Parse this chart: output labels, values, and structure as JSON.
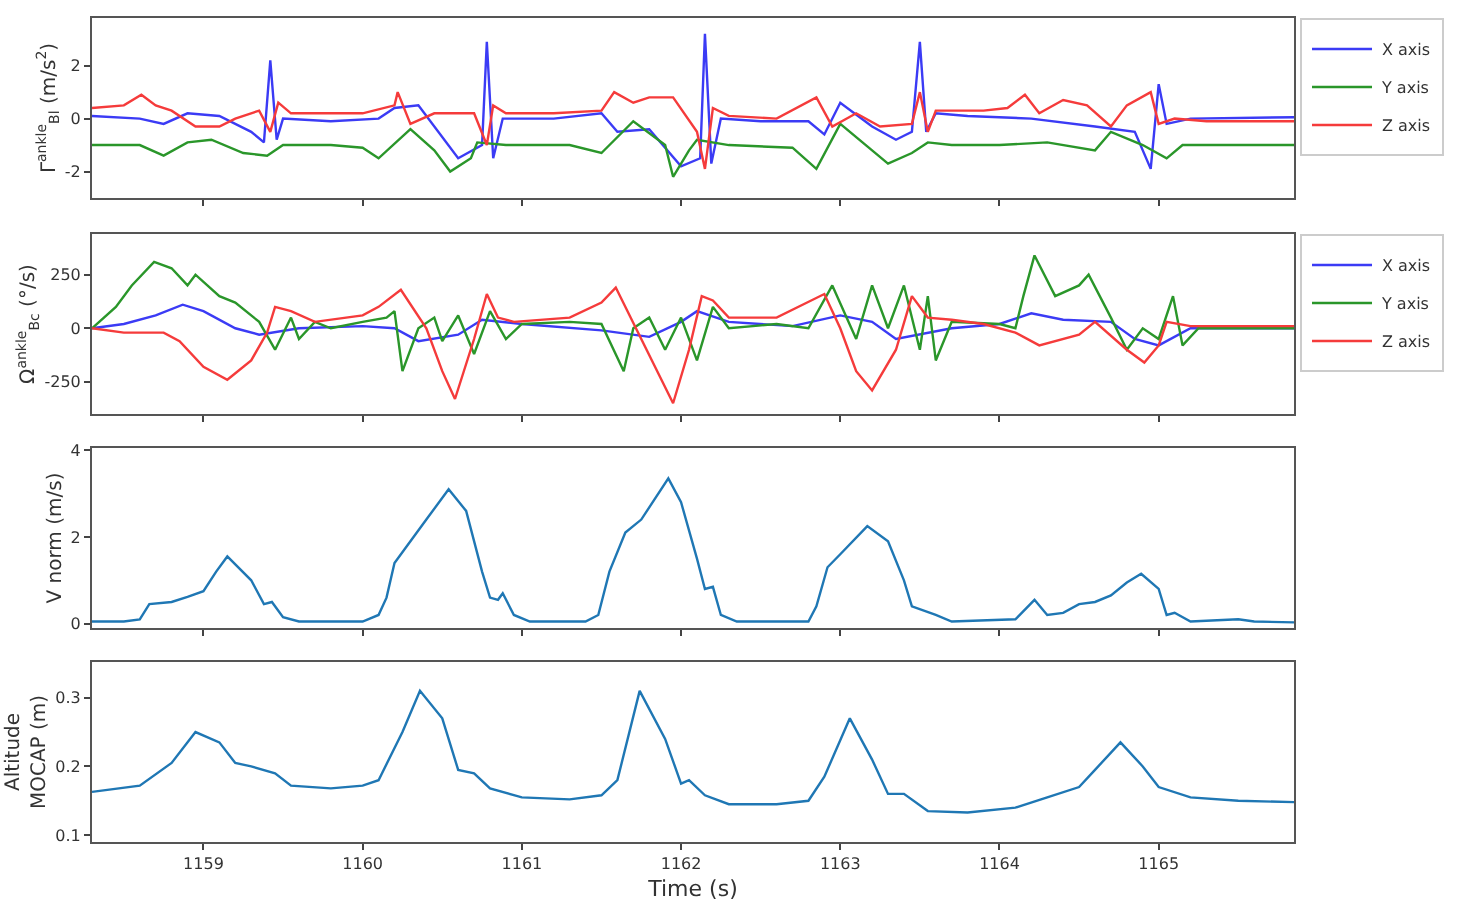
{
  "chart_data": [
    {
      "type": "line",
      "ylabel": "Γ$^{ankle}$$_{Bl}$ (m/s$^{2}$)",
      "xlim": [
        1158.3,
        1165.85
      ],
      "xticks": [
        {
          "value": 1159,
          "label": null
        },
        {
          "value": 1160,
          "label": null
        },
        {
          "value": 1161,
          "label": null
        },
        {
          "value": 1162,
          "label": null
        },
        {
          "value": 1163,
          "label": null
        },
        {
          "value": 1164,
          "label": null
        },
        {
          "value": 1165,
          "label": null
        }
      ],
      "ylim": [
        -3,
        3.8
      ],
      "yticks": [
        -2,
        0,
        2
      ],
      "tick_labels": "y",
      "legend": "top right",
      "series": [
        {
          "name": "X axis",
          "color": "#3b3bf5",
          "x": [
            1158.3,
            1158.6,
            1158.75,
            1158.9,
            1159.1,
            1159.3,
            1159.38,
            1159.42,
            1159.46,
            1159.5,
            1159.8,
            1160.1,
            1160.2,
            1160.35,
            1160.6,
            1160.75,
            1160.78,
            1160.82,
            1160.88,
            1161.2,
            1161.5,
            1161.6,
            1161.8,
            1162.0,
            1162.12,
            1162.15,
            1162.19,
            1162.25,
            1162.5,
            1162.8,
            1162.9,
            1163.0,
            1163.2,
            1163.35,
            1163.45,
            1163.5,
            1163.54,
            1163.6,
            1163.8,
            1164.2,
            1164.6,
            1164.85,
            1164.95,
            1165.0,
            1165.05,
            1165.2,
            1165.85
          ],
          "values": [
            0.1,
            0.0,
            -0.2,
            0.2,
            0.1,
            -0.5,
            -0.9,
            2.2,
            -0.8,
            0.0,
            -0.1,
            0.0,
            0.4,
            0.5,
            -1.5,
            -1.0,
            2.9,
            -1.5,
            0.0,
            0.0,
            0.2,
            -0.5,
            -0.4,
            -1.8,
            -1.5,
            3.2,
            -1.7,
            0.0,
            -0.1,
            -0.1,
            -0.6,
            0.6,
            -0.3,
            -0.8,
            -0.5,
            2.9,
            -0.5,
            0.2,
            0.1,
            0.0,
            -0.3,
            -0.5,
            -1.9,
            1.3,
            -0.2,
            0.0,
            0.05
          ]
        },
        {
          "name": "Y axis",
          "color": "#2a962a",
          "x": [
            1158.3,
            1158.6,
            1158.75,
            1158.9,
            1159.05,
            1159.25,
            1159.4,
            1159.5,
            1159.8,
            1160.0,
            1160.1,
            1160.3,
            1160.45,
            1160.55,
            1160.68,
            1160.72,
            1160.9,
            1161.3,
            1161.5,
            1161.7,
            1161.9,
            1161.95,
            1162.05,
            1162.1,
            1162.3,
            1162.7,
            1162.85,
            1163.0,
            1163.2,
            1163.3,
            1163.45,
            1163.55,
            1163.7,
            1164.0,
            1164.3,
            1164.6,
            1164.7,
            1164.9,
            1165.05,
            1165.15,
            1165.85
          ],
          "values": [
            -1.0,
            -1.0,
            -1.4,
            -0.9,
            -0.8,
            -1.3,
            -1.4,
            -1.0,
            -1.0,
            -1.1,
            -1.5,
            -0.4,
            -1.2,
            -2.0,
            -1.5,
            -0.9,
            -1.0,
            -1.0,
            -1.3,
            -0.1,
            -1.0,
            -2.2,
            -1.2,
            -0.8,
            -1.0,
            -1.1,
            -1.9,
            -0.2,
            -1.2,
            -1.7,
            -1.3,
            -0.9,
            -1.0,
            -1.0,
            -0.9,
            -1.2,
            -0.5,
            -1.0,
            -1.5,
            -1.0,
            -1.0
          ]
        },
        {
          "name": "Z axis",
          "color": "#f53b3b",
          "x": [
            1158.3,
            1158.5,
            1158.61,
            1158.7,
            1158.8,
            1158.95,
            1159.1,
            1159.2,
            1159.35,
            1159.42,
            1159.47,
            1159.55,
            1160.0,
            1160.2,
            1160.22,
            1160.3,
            1160.45,
            1160.7,
            1160.78,
            1160.82,
            1160.9,
            1161.2,
            1161.5,
            1161.58,
            1161.7,
            1161.8,
            1161.95,
            1162.1,
            1162.15,
            1162.2,
            1162.3,
            1162.6,
            1162.85,
            1162.95,
            1163.1,
            1163.25,
            1163.45,
            1163.5,
            1163.55,
            1163.6,
            1163.9,
            1164.05,
            1164.16,
            1164.25,
            1164.4,
            1164.55,
            1164.7,
            1164.8,
            1164.95,
            1165.0,
            1165.1,
            1165.3,
            1165.85
          ],
          "values": [
            0.4,
            0.5,
            0.9,
            0.5,
            0.3,
            -0.3,
            -0.3,
            0.0,
            0.3,
            -0.5,
            0.6,
            0.2,
            0.2,
            0.5,
            1.0,
            -0.2,
            0.2,
            0.2,
            -1.0,
            0.5,
            0.2,
            0.2,
            0.3,
            1.0,
            0.6,
            0.8,
            0.8,
            -0.5,
            -1.9,
            0.4,
            0.1,
            0.0,
            0.8,
            -0.3,
            0.2,
            -0.3,
            -0.2,
            1.0,
            -0.5,
            0.3,
            0.3,
            0.4,
            0.9,
            0.2,
            0.7,
            0.5,
            -0.3,
            0.5,
            1.0,
            -0.2,
            0.0,
            -0.1,
            -0.1
          ]
        }
      ]
    },
    {
      "type": "line",
      "ylabel": "Ω$^{ankle}$$_{Bc}$ (°/s)",
      "xlim": [
        1158.3,
        1165.85
      ],
      "xticks": [
        {
          "value": 1159,
          "label": null
        },
        {
          "value": 1160,
          "label": null
        },
        {
          "value": 1161,
          "label": null
        },
        {
          "value": 1162,
          "label": null
        },
        {
          "value": 1163,
          "label": null
        },
        {
          "value": 1164,
          "label": null
        },
        {
          "value": 1165,
          "label": null
        }
      ],
      "ylim": [
        -400,
        440
      ],
      "yticks": [
        -250,
        0,
        250
      ],
      "tick_labels": "y",
      "legend": "top right",
      "series": [
        {
          "name": "X axis",
          "color": "#3b3bf5",
          "x": [
            1158.3,
            1158.5,
            1158.7,
            1158.87,
            1159.0,
            1159.2,
            1159.35,
            1159.6,
            1160.0,
            1160.2,
            1160.35,
            1160.6,
            1160.75,
            1161.0,
            1161.5,
            1161.8,
            1162.0,
            1162.1,
            1162.3,
            1162.7,
            1163.0,
            1163.2,
            1163.35,
            1163.7,
            1164.0,
            1164.2,
            1164.4,
            1164.7,
            1164.85,
            1165.0,
            1165.2,
            1165.85
          ],
          "values": [
            0,
            20,
            60,
            110,
            80,
            0,
            -30,
            0,
            10,
            0,
            -60,
            -30,
            40,
            20,
            -10,
            -40,
            30,
            80,
            30,
            10,
            60,
            30,
            -50,
            0,
            20,
            70,
            40,
            30,
            -50,
            -80,
            0,
            0
          ]
        },
        {
          "name": "Y axis",
          "color": "#2a962a",
          "x": [
            1158.3,
            1158.45,
            1158.55,
            1158.69,
            1158.8,
            1158.9,
            1158.95,
            1159.1,
            1159.2,
            1159.35,
            1159.45,
            1159.55,
            1159.6,
            1159.7,
            1159.8,
            1160.0,
            1160.15,
            1160.2,
            1160.25,
            1160.35,
            1160.45,
            1160.5,
            1160.6,
            1160.7,
            1160.8,
            1160.9,
            1161.0,
            1161.3,
            1161.5,
            1161.64,
            1161.7,
            1161.8,
            1161.9,
            1162.0,
            1162.1,
            1162.2,
            1162.3,
            1162.6,
            1162.8,
            1162.95,
            1163.1,
            1163.2,
            1163.3,
            1163.4,
            1163.5,
            1163.55,
            1163.6,
            1163.7,
            1164.0,
            1164.1,
            1164.15,
            1164.22,
            1164.35,
            1164.5,
            1164.56,
            1164.7,
            1164.8,
            1164.9,
            1165.0,
            1165.09,
            1165.15,
            1165.25,
            1165.85
          ],
          "values": [
            0,
            100,
            200,
            310,
            280,
            200,
            250,
            150,
            120,
            30,
            -100,
            50,
            -50,
            30,
            0,
            30,
            50,
            80,
            -200,
            0,
            50,
            -60,
            60,
            -120,
            80,
            -50,
            20,
            30,
            20,
            -200,
            0,
            50,
            -100,
            50,
            -150,
            100,
            0,
            20,
            0,
            200,
            -50,
            200,
            0,
            200,
            -100,
            150,
            -150,
            30,
            20,
            0,
            150,
            340,
            150,
            200,
            250,
            50,
            -100,
            0,
            -50,
            150,
            -80,
            0,
            0
          ]
        },
        {
          "name": "Z axis",
          "color": "#f53b3b",
          "x": [
            1158.3,
            1158.5,
            1158.75,
            1158.85,
            1159.0,
            1159.15,
            1159.3,
            1159.4,
            1159.45,
            1159.55,
            1159.7,
            1160.0,
            1160.1,
            1160.24,
            1160.4,
            1160.5,
            1160.58,
            1160.7,
            1160.78,
            1160.85,
            1160.95,
            1161.3,
            1161.5,
            1161.59,
            1161.75,
            1161.95,
            1162.05,
            1162.13,
            1162.2,
            1162.3,
            1162.6,
            1162.9,
            1163.0,
            1163.1,
            1163.2,
            1163.35,
            1163.45,
            1163.55,
            1163.7,
            1163.9,
            1164.1,
            1164.25,
            1164.5,
            1164.6,
            1164.8,
            1164.91,
            1165.0,
            1165.05,
            1165.2,
            1165.85
          ],
          "values": [
            0,
            -20,
            -20,
            -60,
            -180,
            -240,
            -150,
            -20,
            100,
            80,
            30,
            60,
            100,
            180,
            0,
            -200,
            -330,
            -50,
            160,
            50,
            30,
            50,
            120,
            190,
            -50,
            -350,
            -100,
            150,
            130,
            50,
            50,
            160,
            0,
            -200,
            -290,
            -100,
            150,
            50,
            40,
            20,
            -20,
            -80,
            -30,
            30,
            -100,
            -160,
            -80,
            30,
            10,
            10
          ]
        }
      ]
    },
    {
      "type": "line",
      "ylabel": "V norm (m/s)",
      "xlim": [
        1158.3,
        1165.85
      ],
      "xticks": [
        {
          "value": 1159,
          "label": null
        },
        {
          "value": 1160,
          "label": null
        },
        {
          "value": 1161,
          "label": null
        },
        {
          "value": 1162,
          "label": null
        },
        {
          "value": 1163,
          "label": null
        },
        {
          "value": 1164,
          "label": null
        },
        {
          "value": 1165,
          "label": null
        }
      ],
      "ylim": [
        -0.1,
        4.05
      ],
      "yticks": [
        0,
        2,
        4
      ],
      "tick_labels": "y",
      "series": [
        {
          "color": "#1f77b4",
          "x": [
            1158.3,
            1158.5,
            1158.6,
            1158.66,
            1158.8,
            1158.9,
            1159.0,
            1159.08,
            1159.15,
            1159.3,
            1159.38,
            1159.43,
            1159.5,
            1159.6,
            1160.0,
            1160.1,
            1160.15,
            1160.2,
            1160.3,
            1160.4,
            1160.54,
            1160.65,
            1160.75,
            1160.8,
            1160.85,
            1160.88,
            1160.95,
            1161.05,
            1161.4,
            1161.48,
            1161.55,
            1161.65,
            1161.75,
            1161.92,
            1162.0,
            1162.1,
            1162.15,
            1162.2,
            1162.25,
            1162.35,
            1162.8,
            1162.85,
            1162.92,
            1163.0,
            1163.17,
            1163.3,
            1163.4,
            1163.45,
            1163.6,
            1163.7,
            1164.1,
            1164.22,
            1164.3,
            1164.4,
            1164.5,
            1164.6,
            1164.7,
            1164.8,
            1164.89,
            1165.0,
            1165.05,
            1165.1,
            1165.2,
            1165.5,
            1165.6,
            1165.85
          ],
          "values": [
            0.05,
            0.05,
            0.1,
            0.45,
            0.5,
            0.62,
            0.75,
            1.2,
            1.55,
            1.0,
            0.45,
            0.5,
            0.15,
            0.05,
            0.05,
            0.2,
            0.6,
            1.4,
            1.9,
            2.4,
            3.1,
            2.6,
            1.2,
            0.6,
            0.55,
            0.7,
            0.2,
            0.05,
            0.05,
            0.2,
            1.2,
            2.1,
            2.4,
            3.35,
            2.8,
            1.5,
            0.8,
            0.85,
            0.2,
            0.05,
            0.05,
            0.4,
            1.3,
            1.6,
            2.25,
            1.9,
            1.0,
            0.4,
            0.2,
            0.05,
            0.1,
            0.55,
            0.2,
            0.25,
            0.45,
            0.5,
            0.65,
            0.95,
            1.15,
            0.8,
            0.2,
            0.25,
            0.05,
            0.1,
            0.05,
            0.03
          ]
        }
      ]
    },
    {
      "type": "line",
      "ylabel": "Altitude\nMOCAP (m)",
      "xlabel": "Time (s)",
      "xlim": [
        1158.3,
        1165.85
      ],
      "xticks": [
        1159,
        1160,
        1161,
        1162,
        1163,
        1164,
        1165
      ],
      "ylim": [
        0.09,
        0.352
      ],
      "yticks": [
        0.1,
        0.2,
        0.3
      ],
      "series": [
        {
          "color": "#1f77b4",
          "x": [
            1158.3,
            1158.6,
            1158.8,
            1158.95,
            1159.1,
            1159.2,
            1159.3,
            1159.45,
            1159.55,
            1159.8,
            1160.0,
            1160.1,
            1160.25,
            1160.36,
            1160.5,
            1160.6,
            1160.7,
            1160.8,
            1161.0,
            1161.3,
            1161.5,
            1161.6,
            1161.74,
            1161.9,
            1162.0,
            1162.05,
            1162.15,
            1162.3,
            1162.6,
            1162.8,
            1162.9,
            1163.06,
            1163.2,
            1163.3,
            1163.4,
            1163.55,
            1163.8,
            1164.1,
            1164.3,
            1164.5,
            1164.6,
            1164.76,
            1164.9,
            1165.0,
            1165.2,
            1165.5,
            1165.85
          ],
          "values": [
            0.163,
            0.172,
            0.205,
            0.25,
            0.235,
            0.205,
            0.2,
            0.19,
            0.172,
            0.168,
            0.172,
            0.18,
            0.25,
            0.31,
            0.27,
            0.195,
            0.19,
            0.168,
            0.155,
            0.152,
            0.158,
            0.18,
            0.31,
            0.24,
            0.175,
            0.18,
            0.158,
            0.145,
            0.145,
            0.15,
            0.185,
            0.27,
            0.21,
            0.16,
            0.16,
            0.135,
            0.133,
            0.14,
            0.155,
            0.17,
            0.195,
            0.235,
            0.2,
            0.17,
            0.155,
            0.15,
            0.148
          ]
        }
      ]
    }
  ]
}
